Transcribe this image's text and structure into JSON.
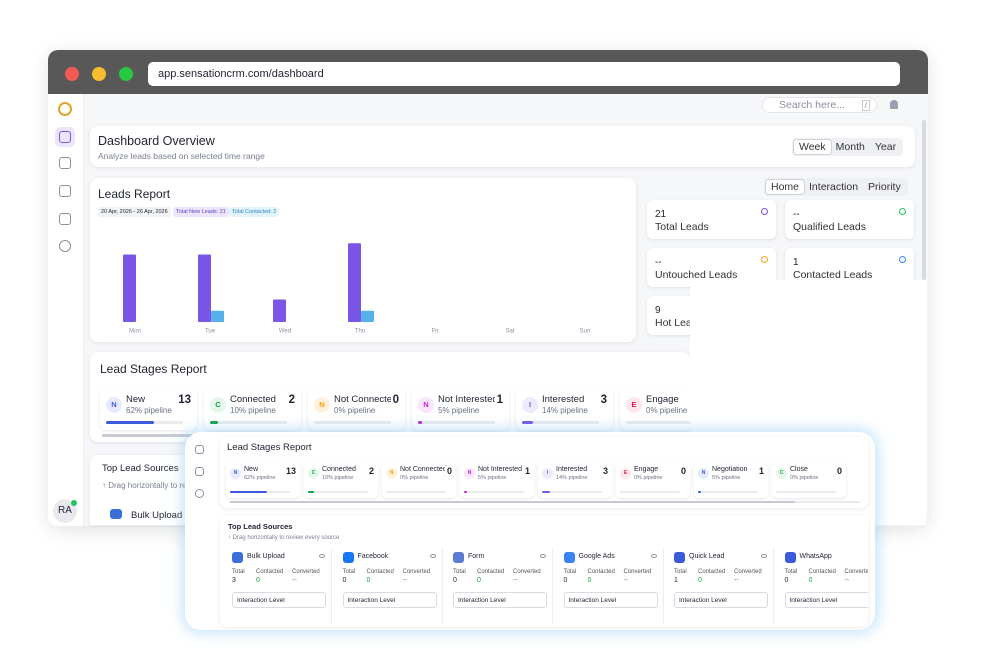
{
  "browser": {
    "url": "app.sensationcrm.com/dashboard"
  },
  "topbar": {
    "search": "Search here...",
    "shortcut": "/"
  },
  "user": {
    "initials": "RA"
  },
  "overview": {
    "title": "Dashboard Overview",
    "subtitle": "Analyze leads based on selected time range",
    "ranges": [
      "Week",
      "Month",
      "Year"
    ]
  },
  "chart_data": {
    "type": "bar",
    "title": "Leads Report",
    "date_range": "20 Apr, 2026 - 26 Apr, 2026",
    "badges": [
      "Total New Leads: 21",
      "Total Contacted: 2"
    ],
    "categories": [
      "Mon",
      "Tue",
      "Wed",
      "Thu",
      "Fri",
      "Sat",
      "Sun"
    ],
    "series": [
      {
        "color": "#7a55e6",
        "values": [
          6,
          6,
          2,
          7,
          0,
          0,
          0
        ]
      },
      {
        "color": "#56b1ea",
        "values": [
          0,
          1,
          0,
          1,
          0,
          0,
          0
        ]
      }
    ],
    "ylim": [
      0,
      8
    ]
  },
  "views": [
    "Home",
    "Interaction",
    "Priority"
  ],
  "stats": [
    {
      "value": 21,
      "label": "Total Leads"
    },
    {
      "value": "--",
      "label": "Qualified Leads"
    },
    {
      "value": "--",
      "label": "Untouched Leads"
    },
    {
      "value": 1,
      "label": "Contacted Leads"
    },
    {
      "value": 9,
      "label": "Hot Leads"
    }
  ],
  "lead_stages": {
    "title": "Lead Stages Report",
    "stages": [
      {
        "initial": "N",
        "name": "New",
        "count": 13,
        "pipeline": 62,
        "pipeline_label": "62% pipeline"
      },
      {
        "initial": "C",
        "name": "Connected",
        "count": 2,
        "pipeline": 10,
        "pipeline_label": "10% pipeline"
      },
      {
        "initial": "N",
        "name": "Not Connected",
        "count": 0,
        "pipeline": 0,
        "pipeline_label": "0% pipeline"
      },
      {
        "initial": "N",
        "name": "Not Interested",
        "count": 1,
        "pipeline": 5,
        "pipeline_label": "5% pipeline"
      },
      {
        "initial": "I",
        "name": "Interested",
        "count": 3,
        "pipeline": 14,
        "pipeline_label": "14% pipeline"
      },
      {
        "initial": "E",
        "name": "Engage",
        "count": 0,
        "pipeline": 0,
        "pipeline_label": "0% pipeline"
      },
      {
        "initial": "N",
        "name": "Negotiation",
        "count": 1,
        "pipeline": 5,
        "pipeline_label": "5% pipeline"
      },
      {
        "initial": "C",
        "name": "Close",
        "count": 0,
        "pipeline": 0,
        "pipeline_label": "0% pipeline"
      }
    ]
  },
  "lead_sources": {
    "title": "Top Lead Sources",
    "hint": "Drag horizontally to review every source",
    "columns": [
      "Total",
      "Contacted",
      "Converted"
    ],
    "dropdown": "Interaction Level",
    "sources": [
      {
        "name": "Bulk Upload",
        "total": 3,
        "contacted": 0,
        "converted": "--"
      },
      {
        "name": "Facebook",
        "total": 0,
        "contacted": 0,
        "converted": "--"
      },
      {
        "name": "Form",
        "total": 0,
        "contacted": 0,
        "converted": "--"
      },
      {
        "name": "Google Ads",
        "total": 0,
        "contacted": 0,
        "converted": "--"
      },
      {
        "name": "Quick Lead",
        "total": 1,
        "contacted": 0,
        "converted": "--"
      },
      {
        "name": "WhatsApp",
        "total": 0,
        "contacted": 0,
        "converted": "--"
      }
    ]
  }
}
